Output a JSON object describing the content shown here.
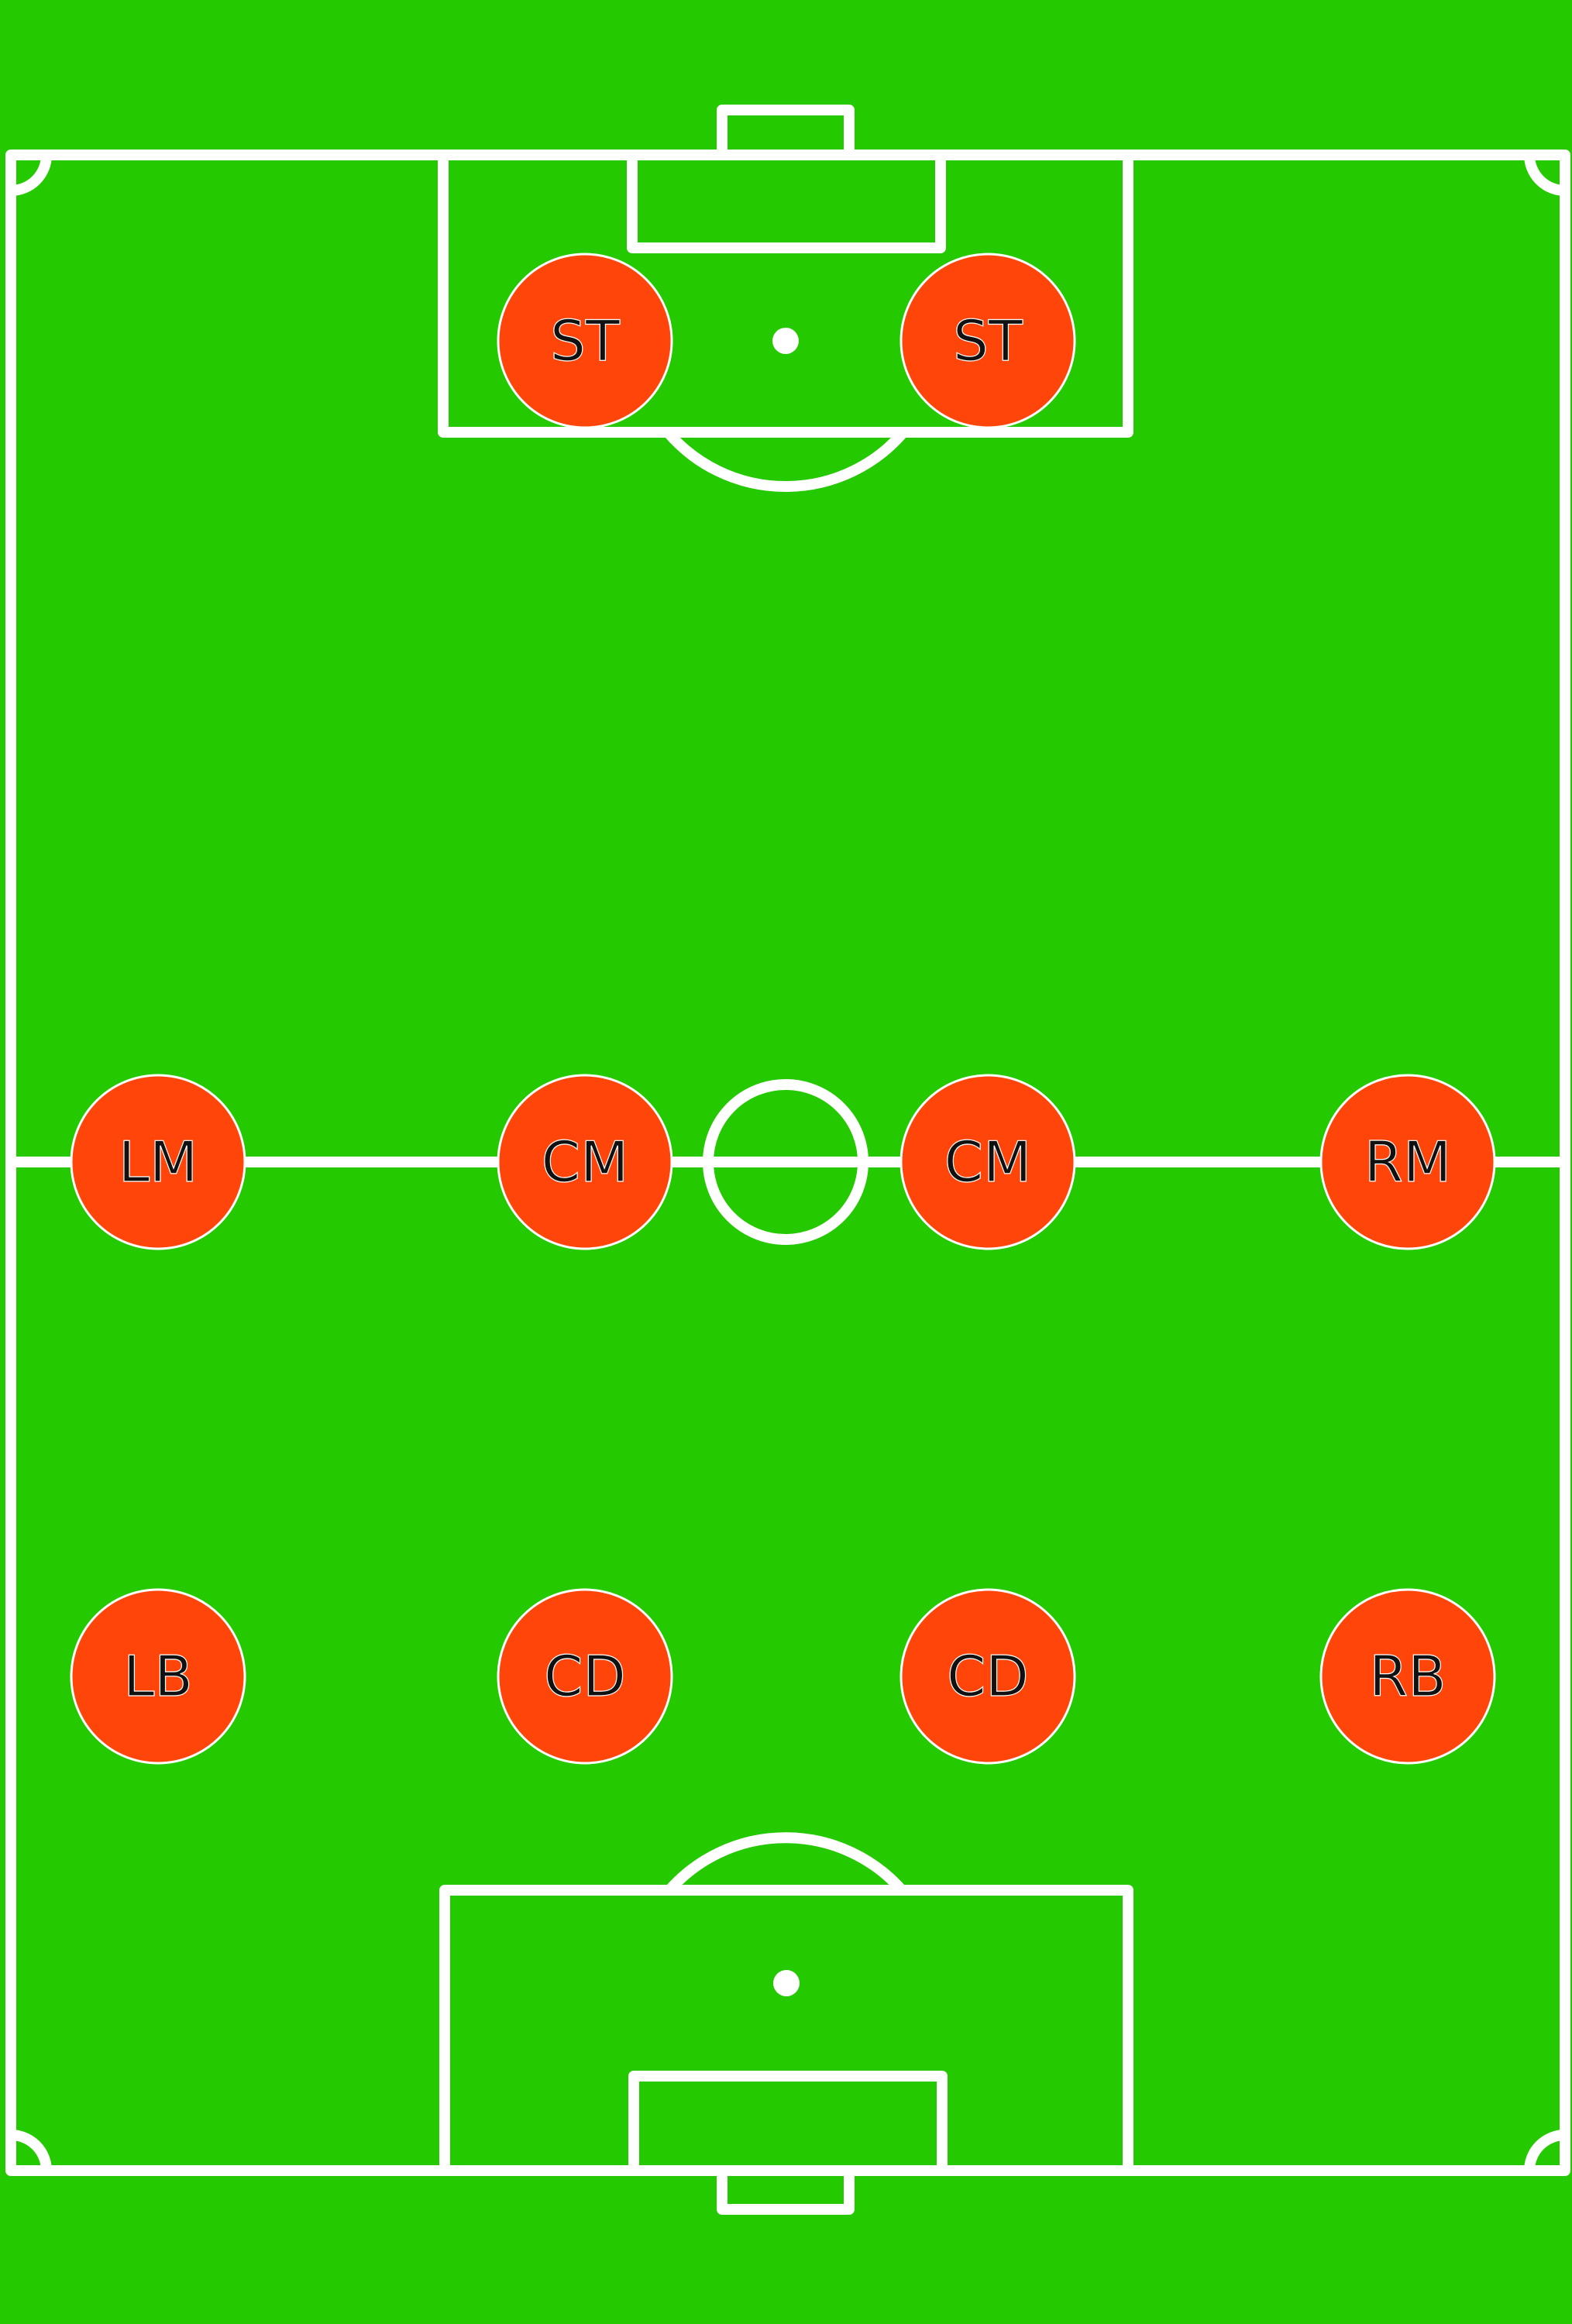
{
  "pitch": {
    "grass_color": "#24c900",
    "line_color": "#ffffff",
    "player_color": "#ff450a"
  },
  "players": [
    {
      "role": "ST"
    },
    {
      "role": "ST"
    },
    {
      "role": "LM"
    },
    {
      "role": "CM"
    },
    {
      "role": "CM"
    },
    {
      "role": "RM"
    },
    {
      "role": "LB"
    },
    {
      "role": "CD"
    },
    {
      "role": "CD"
    },
    {
      "role": "RB"
    }
  ]
}
